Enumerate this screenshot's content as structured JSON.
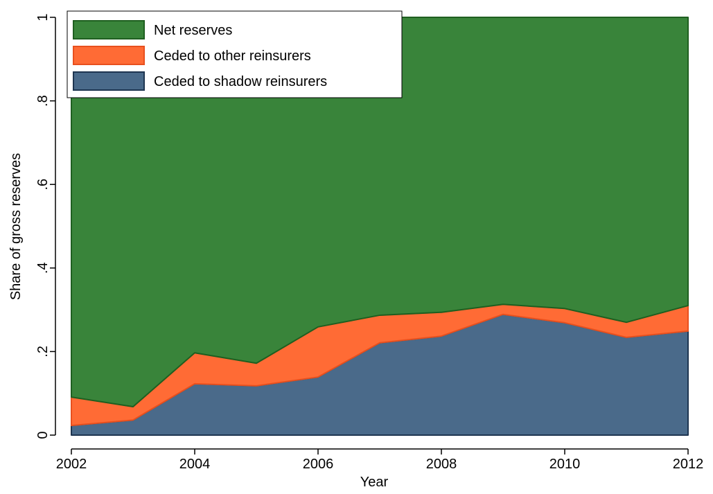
{
  "chart_data": {
    "type": "stacked_area",
    "x_label": "Year",
    "y_label": "Share of gross reserves",
    "x": [
      2002,
      2003,
      2004,
      2005,
      2006,
      2007,
      2008,
      2009,
      2010,
      2011,
      2012
    ],
    "series": [
      {
        "name": "Ceded to shadow reinsurers",
        "color": "#4a6a8a",
        "stroke": "#1e3550",
        "values": [
          0.023,
          0.036,
          0.123,
          0.118,
          0.139,
          0.221,
          0.237,
          0.289,
          0.269,
          0.234,
          0.249
        ]
      },
      {
        "name": "Ceded to other reinsurers",
        "color": "#ff6b35",
        "stroke": "#e8501e",
        "values": [
          0.068,
          0.032,
          0.074,
          0.054,
          0.12,
          0.066,
          0.057,
          0.024,
          0.034,
          0.036,
          0.061
        ]
      },
      {
        "name": "Net reserves",
        "color": "#39843a",
        "stroke": "#1f5f20",
        "values": [
          0.909,
          0.932,
          0.803,
          0.828,
          0.741,
          0.713,
          0.706,
          0.687,
          0.697,
          0.73,
          0.69
        ]
      }
    ],
    "xlim": [
      2002,
      2012
    ],
    "xticks": [
      2002,
      2004,
      2006,
      2008,
      2010,
      2012
    ],
    "ylim": [
      0,
      1
    ],
    "yticks": [
      0,
      {
        "value": 0.2,
        "label": ".2"
      },
      {
        "value": 0.4,
        "label": ".4"
      },
      {
        "value": 0.6,
        "label": ".6"
      },
      {
        "value": 0.8,
        "label": ".8"
      },
      1
    ],
    "legend": "top-left"
  }
}
